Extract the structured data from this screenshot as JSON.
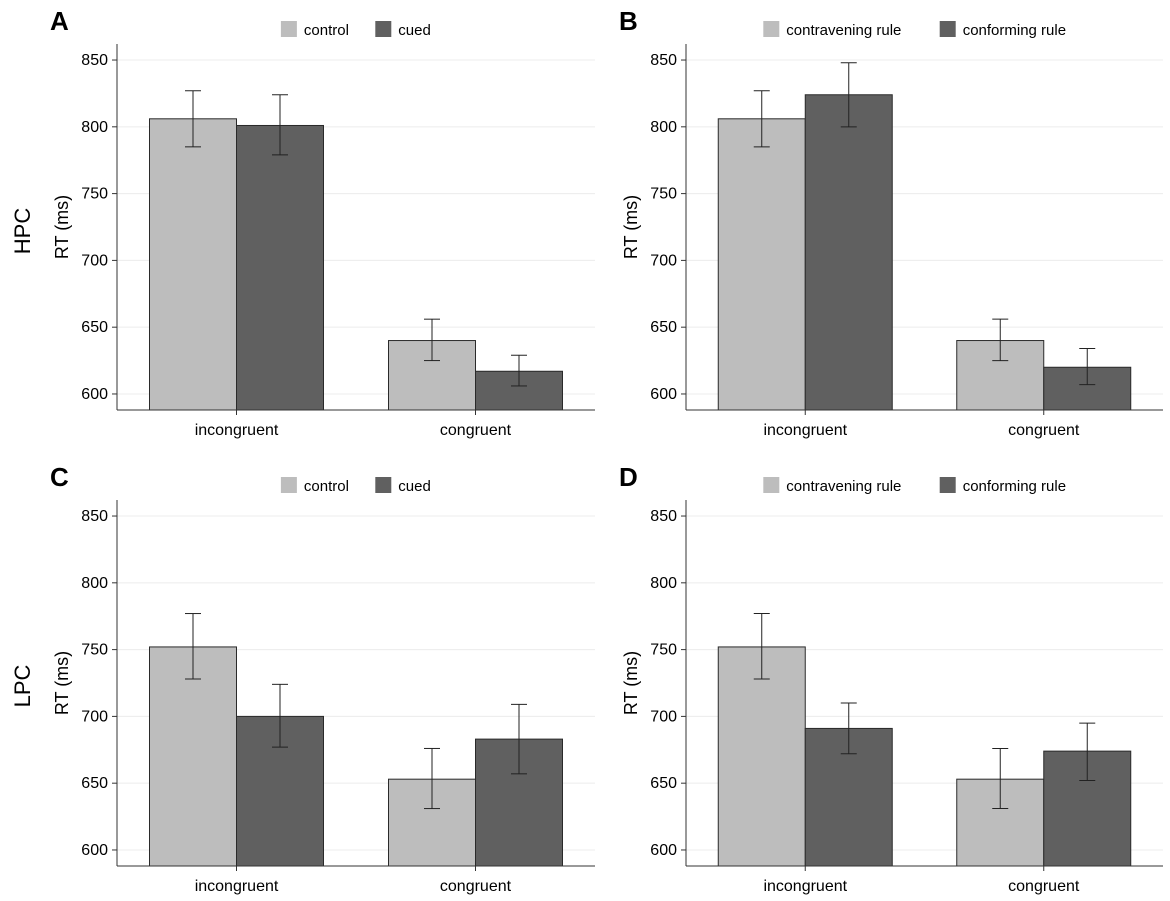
{
  "row_labels": [
    "HPC",
    "LPC"
  ],
  "chart_data": [
    {
      "panel": "A",
      "type": "bar",
      "ylabel": "RT (ms)",
      "ylim": [
        588,
        862
      ],
      "yticks": [
        600,
        650,
        700,
        750,
        800,
        850
      ],
      "categories": [
        "incongruent",
        "congruent"
      ],
      "legend_position": "top-center",
      "grid": true,
      "series": [
        {
          "name": "control",
          "color": "#bdbdbd",
          "values": [
            806,
            640
          ],
          "error_low": [
            785,
            625
          ],
          "error_high": [
            827,
            656
          ]
        },
        {
          "name": "cued",
          "color": "#606060",
          "values": [
            801,
            617
          ],
          "error_low": [
            779,
            606
          ],
          "error_high": [
            824,
            629
          ]
        }
      ]
    },
    {
      "panel": "B",
      "type": "bar",
      "ylabel": "RT (ms)",
      "ylim": [
        588,
        862
      ],
      "yticks": [
        600,
        650,
        700,
        750,
        800,
        850
      ],
      "categories": [
        "incongruent",
        "congruent"
      ],
      "legend_position": "top-center",
      "grid": true,
      "series": [
        {
          "name": "contravening rule",
          "color": "#bdbdbd",
          "values": [
            806,
            640
          ],
          "error_low": [
            785,
            625
          ],
          "error_high": [
            827,
            656
          ]
        },
        {
          "name": "conforming rule",
          "color": "#606060",
          "values": [
            824,
            620
          ],
          "error_low": [
            800,
            607
          ],
          "error_high": [
            848,
            634
          ]
        }
      ]
    },
    {
      "panel": "C",
      "type": "bar",
      "ylabel": "RT (ms)",
      "ylim": [
        588,
        862
      ],
      "yticks": [
        600,
        650,
        700,
        750,
        800,
        850
      ],
      "categories": [
        "incongruent",
        "congruent"
      ],
      "legend_position": "top-center",
      "grid": true,
      "series": [
        {
          "name": "control",
          "color": "#bdbdbd",
          "values": [
            752,
            653
          ],
          "error_low": [
            728,
            631
          ],
          "error_high": [
            777,
            676
          ]
        },
        {
          "name": "cued",
          "color": "#606060",
          "values": [
            700,
            683
          ],
          "error_low": [
            677,
            657
          ],
          "error_high": [
            724,
            709
          ]
        }
      ]
    },
    {
      "panel": "D",
      "type": "bar",
      "ylabel": "RT (ms)",
      "ylim": [
        588,
        862
      ],
      "yticks": [
        600,
        650,
        700,
        750,
        800,
        850
      ],
      "categories": [
        "incongruent",
        "congruent"
      ],
      "legend_position": "top-center",
      "grid": true,
      "series": [
        {
          "name": "contravening rule",
          "color": "#bdbdbd",
          "values": [
            752,
            653
          ],
          "error_low": [
            728,
            631
          ],
          "error_high": [
            777,
            676
          ]
        },
        {
          "name": "conforming rule",
          "color": "#606060",
          "values": [
            691,
            674
          ],
          "error_low": [
            672,
            652
          ],
          "error_high": [
            710,
            695
          ]
        }
      ]
    }
  ]
}
